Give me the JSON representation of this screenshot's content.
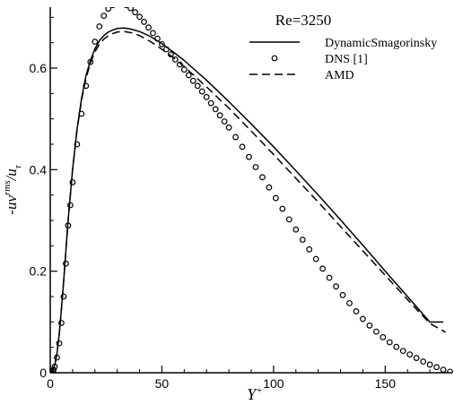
{
  "chart_data": {
    "type": "line",
    "annotation": "Re=3250",
    "xlabel": {
      "base": "Y",
      "sup": "+"
    },
    "ylabel": {
      "prefix": "-uv",
      "sup": "rms",
      "slash": "/u",
      "sub": "τ"
    },
    "xlim": [
      0,
      180
    ],
    "ylim": [
      0,
      0.72
    ],
    "x_ticks": [
      0,
      50,
      100,
      150
    ],
    "x_tick_labels": [
      "0",
      "50",
      "100",
      "150"
    ],
    "y_ticks": [
      0,
      0.2,
      0.4,
      0.6
    ],
    "y_tick_labels": [
      "0",
      "0.2",
      "0.4",
      "0.6"
    ],
    "grid": false,
    "legend_position": "top-right",
    "series": [
      {
        "name": "DynamicSmagorinsky",
        "style": "solid",
        "color": "#000000",
        "x": [
          0,
          1,
          2,
          3,
          4,
          5,
          6,
          7,
          8,
          10,
          12,
          14,
          16,
          18,
          20,
          22,
          24,
          26,
          28,
          30,
          33,
          36,
          40,
          45,
          50,
          55,
          60,
          70,
          80,
          90,
          100,
          110,
          120,
          130,
          140,
          150,
          160,
          170,
          176
        ],
        "y": [
          0,
          0.004,
          0.015,
          0.038,
          0.075,
          0.125,
          0.18,
          0.24,
          0.3,
          0.4,
          0.48,
          0.54,
          0.585,
          0.615,
          0.638,
          0.654,
          0.664,
          0.671,
          0.675,
          0.678,
          0.679,
          0.677,
          0.672,
          0.662,
          0.648,
          0.632,
          0.615,
          0.576,
          0.534,
          0.49,
          0.445,
          0.398,
          0.35,
          0.301,
          0.251,
          0.2,
          0.15,
          0.1,
          0.1
        ]
      },
      {
        "name": "DNS [1]",
        "style": "circles",
        "color": "#000000",
        "x": [
          0.5,
          1,
          1.5,
          2,
          3,
          4,
          5,
          6,
          7,
          8,
          9,
          10,
          12,
          14,
          16,
          18,
          20,
          22,
          24,
          26,
          28,
          30,
          32,
          34,
          36,
          38,
          40,
          42,
          44,
          46,
          48,
          50,
          52,
          54,
          56,
          58,
          60,
          62,
          64,
          66,
          68,
          70,
          72,
          74,
          76,
          78,
          80,
          83,
          86,
          89,
          92,
          95,
          98,
          101,
          104,
          107,
          110,
          113,
          116,
          119,
          122,
          125,
          128,
          131,
          134,
          137,
          140,
          143,
          146,
          149,
          152,
          155,
          158,
          161,
          164,
          167,
          170,
          173,
          176,
          179
        ],
        "y": [
          0.001,
          0.003,
          0.006,
          0.012,
          0.03,
          0.058,
          0.098,
          0.15,
          0.215,
          0.29,
          0.33,
          0.375,
          0.45,
          0.51,
          0.565,
          0.612,
          0.652,
          0.682,
          0.703,
          0.717,
          0.724,
          0.727,
          0.727,
          0.724,
          0.718,
          0.71,
          0.701,
          0.691,
          0.68,
          0.669,
          0.658,
          0.647,
          0.637,
          0.627,
          0.617,
          0.607,
          0.597,
          0.586,
          0.575,
          0.565,
          0.554,
          0.543,
          0.531,
          0.519,
          0.507,
          0.495,
          0.483,
          0.464,
          0.445,
          0.425,
          0.405,
          0.385,
          0.365,
          0.344,
          0.323,
          0.302,
          0.282,
          0.262,
          0.243,
          0.224,
          0.205,
          0.187,
          0.17,
          0.153,
          0.137,
          0.121,
          0.106,
          0.093,
          0.081,
          0.07,
          0.06,
          0.051,
          0.043,
          0.036,
          0.029,
          0.022,
          0.016,
          0.011,
          0.006,
          0.002
        ]
      },
      {
        "name": "AMD",
        "style": "dashed",
        "color": "#000000",
        "x": [
          0,
          1,
          2,
          3,
          4,
          5,
          6,
          7,
          8,
          10,
          12,
          14,
          16,
          18,
          20,
          22,
          24,
          26,
          28,
          30,
          33,
          36,
          40,
          45,
          50,
          55,
          60,
          70,
          80,
          90,
          100,
          110,
          120,
          130,
          140,
          150,
          160,
          170,
          177
        ],
        "y": [
          0,
          0.004,
          0.015,
          0.038,
          0.075,
          0.125,
          0.18,
          0.24,
          0.3,
          0.4,
          0.478,
          0.536,
          0.58,
          0.61,
          0.632,
          0.647,
          0.657,
          0.664,
          0.668,
          0.671,
          0.672,
          0.67,
          0.664,
          0.652,
          0.637,
          0.621,
          0.603,
          0.563,
          0.521,
          0.476,
          0.43,
          0.383,
          0.336,
          0.288,
          0.24,
          0.192,
          0.144,
          0.097,
          0.08
        ]
      }
    ]
  }
}
